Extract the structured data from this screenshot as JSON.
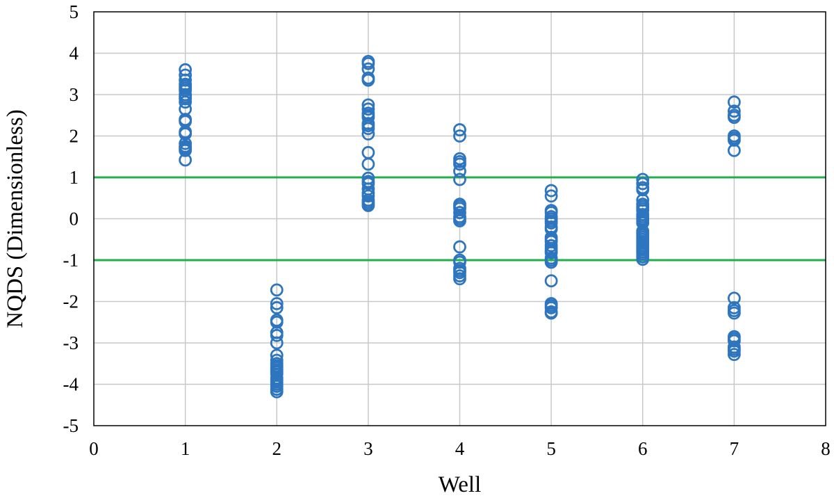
{
  "chart_data": {
    "type": "scatter",
    "title": "",
    "xlabel": "Well",
    "ylabel": "NQDS (Dimensionless)",
    "xlim": [
      0,
      8
    ],
    "ylim": [
      -5,
      5
    ],
    "xticks": [
      0,
      1,
      2,
      3,
      4,
      5,
      6,
      7,
      8
    ],
    "yticks": [
      -5,
      -4,
      -3,
      -2,
      -1,
      0,
      1,
      2,
      3,
      4,
      5
    ],
    "grid": true,
    "legend": "none",
    "marker": "open-circle",
    "marker_color": "#2e75c0",
    "reference_line_color": "#1fb04b",
    "reference_lines": [
      {
        "y": 1
      },
      {
        "y": -1
      }
    ],
    "series": [
      {
        "x": [
          1,
          1,
          1,
          1,
          1,
          1,
          1,
          1,
          1,
          1,
          1,
          1,
          1,
          1,
          1,
          1,
          1,
          1,
          1,
          1,
          1,
          1
        ],
        "y": [
          3.6,
          3.47,
          3.35,
          3.25,
          3.2,
          3.15,
          3.1,
          3.0,
          2.95,
          2.9,
          2.82,
          2.65,
          2.4,
          2.35,
          2.1,
          2.05,
          1.82,
          1.75,
          1.72,
          1.68,
          1.65,
          1.42
        ]
      },
      {
        "x": [
          2,
          2,
          2,
          2,
          2,
          2,
          2,
          2,
          2,
          2,
          2,
          2,
          2,
          2,
          2,
          2,
          2,
          2,
          2,
          2,
          2,
          2,
          2
        ],
        "y": [
          -1.72,
          -2.05,
          -2.15,
          -2.45,
          -2.5,
          -2.75,
          -2.82,
          -3.0,
          -3.3,
          -3.42,
          -3.5,
          -3.55,
          -3.6,
          -3.65,
          -3.7,
          -3.75,
          -3.85,
          -3.9,
          -3.95,
          -4.0,
          -4.05,
          -4.12,
          -4.18
        ]
      },
      {
        "x": [
          3,
          3,
          3,
          3,
          3,
          3,
          3,
          3,
          3,
          3,
          3,
          3,
          3,
          3,
          3,
          3,
          3,
          3,
          3,
          3,
          3,
          3,
          3,
          3,
          3,
          3
        ],
        "y": [
          3.8,
          3.75,
          3.62,
          3.4,
          3.35,
          2.75,
          2.65,
          2.55,
          2.5,
          2.45,
          2.3,
          2.25,
          2.18,
          2.05,
          1.6,
          1.32,
          0.98,
          0.9,
          0.85,
          0.72,
          0.62,
          0.55,
          0.45,
          0.4,
          0.35,
          0.32
        ]
      },
      {
        "x": [
          4,
          4,
          4,
          4,
          4,
          4,
          4,
          4,
          4,
          4,
          4,
          4,
          4,
          4,
          4,
          4,
          4,
          4,
          4,
          4,
          4,
          4
        ],
        "y": [
          2.15,
          2.0,
          1.45,
          1.38,
          1.32,
          1.15,
          0.95,
          0.35,
          0.3,
          0.25,
          0.15,
          0.05,
          0.0,
          -0.05,
          -0.68,
          -1.0,
          -1.05,
          -1.2,
          -1.25,
          -1.3,
          -1.38,
          -1.45
        ]
      },
      {
        "x": [
          5,
          5,
          5,
          5,
          5,
          5,
          5,
          5,
          5,
          5,
          5,
          5,
          5,
          5,
          5,
          5,
          5,
          5,
          5,
          5,
          5,
          5,
          5,
          5,
          5,
          5
        ],
        "y": [
          0.68,
          0.55,
          0.2,
          0.15,
          0.05,
          0.0,
          -0.05,
          -0.1,
          -0.2,
          -0.25,
          -0.45,
          -0.5,
          -0.55,
          -0.65,
          -0.72,
          -0.78,
          -0.82,
          -0.95,
          -1.0,
          -1.05,
          -1.5,
          -2.05,
          -2.1,
          -2.15,
          -2.25,
          -2.28
        ]
      },
      {
        "x": [
          6,
          6,
          6,
          6,
          6,
          6,
          6,
          6,
          6,
          6,
          6,
          6,
          6,
          6,
          6,
          6,
          6,
          6,
          6,
          6,
          6,
          6,
          6,
          6,
          6,
          6,
          6,
          6
        ],
        "y": [
          0.95,
          0.85,
          0.75,
          0.7,
          0.45,
          0.35,
          0.3,
          0.25,
          0.2,
          0.1,
          0.05,
          0.0,
          -0.05,
          -0.1,
          -0.3,
          -0.35,
          -0.4,
          -0.45,
          -0.5,
          -0.55,
          -0.6,
          -0.65,
          -0.7,
          -0.75,
          -0.8,
          -0.85,
          -0.92,
          -0.98
        ]
      },
      {
        "x": [
          7,
          7,
          7,
          7,
          7,
          7,
          7,
          7,
          7,
          7,
          7,
          7,
          7,
          7,
          7,
          7,
          7,
          7,
          7
        ],
        "y": [
          2.82,
          2.6,
          2.5,
          2.45,
          2.0,
          1.95,
          1.9,
          1.65,
          -1.92,
          -2.15,
          -2.22,
          -2.28,
          -2.85,
          -2.9,
          -2.95,
          -3.1,
          -3.15,
          -3.2,
          -3.28
        ]
      }
    ]
  }
}
